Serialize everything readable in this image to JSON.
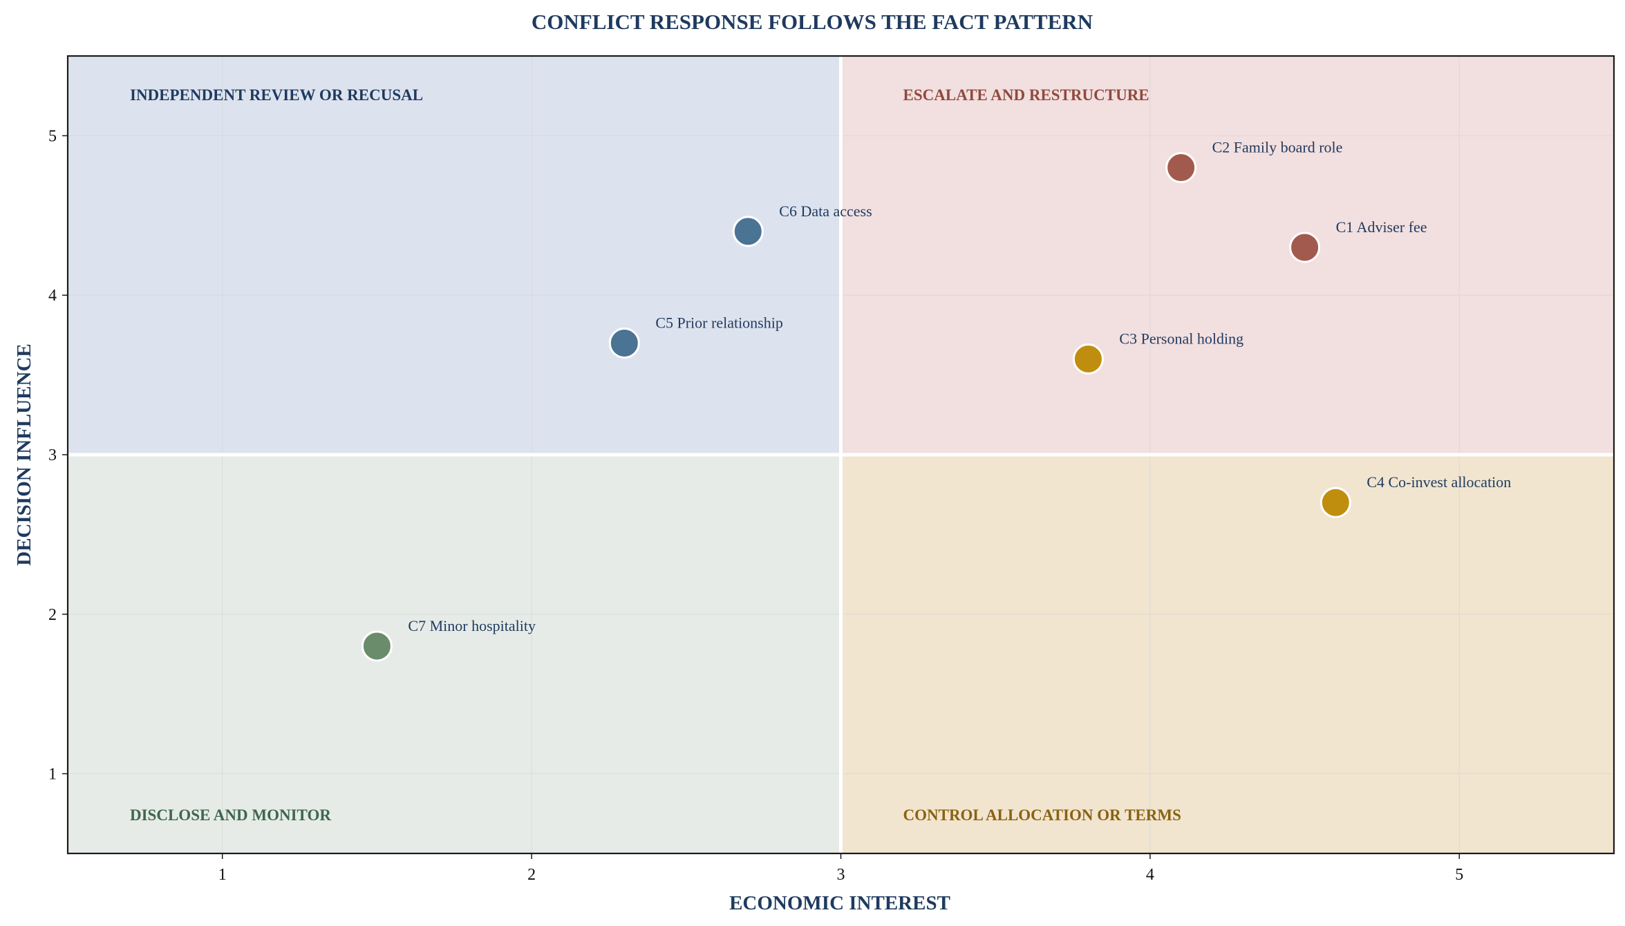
{
  "chart_data": {
    "type": "scatter",
    "title": "CONFLICT RESPONSE FOLLOWS THE FACT PATTERN",
    "xlabel": "ECONOMIC INTEREST",
    "ylabel": "DECISION INFLUENCE",
    "xlim": [
      0.5,
      5.5
    ],
    "ylim": [
      0.5,
      5.5
    ],
    "xticks": [
      1,
      2,
      3,
      4,
      5
    ],
    "yticks": [
      1,
      2,
      3,
      4,
      5
    ],
    "grid": true,
    "threshold": {
      "x": 3,
      "y": 3
    },
    "quadrants": [
      {
        "name": "INDEPENDENT REVIEW OR RECUSAL",
        "x_range": [
          0.5,
          3
        ],
        "y_range": [
          3,
          5.5
        ],
        "fill": "#dde3ee",
        "label_color": "#1f3a5f"
      },
      {
        "name": "ESCALATE AND RESTRUCTURE",
        "x_range": [
          3,
          5.5
        ],
        "y_range": [
          3,
          5.5
        ],
        "fill": "#f2dfdf",
        "label_color": "#8f4a3d"
      },
      {
        "name": "DISCLOSE AND MONITOR",
        "x_range": [
          0.5,
          3
        ],
        "y_range": [
          0.5,
          3
        ],
        "fill": "#e6ebe7",
        "label_color": "#3f6650"
      },
      {
        "name": "CONTROL ALLOCATION OR TERMS",
        "x_range": [
          3,
          5.5
        ],
        "y_range": [
          0.5,
          3
        ],
        "fill": "#f1e5cf",
        "label_color": "#8a6212"
      }
    ],
    "points": [
      {
        "label": "C1 Adviser fee",
        "x": 4.5,
        "y": 4.3,
        "color": "#a35a4e"
      },
      {
        "label": "C2 Family board role",
        "x": 4.1,
        "y": 4.8,
        "color": "#a35a4e"
      },
      {
        "label": "C3 Personal holding",
        "x": 3.8,
        "y": 3.6,
        "color": "#c08e0e"
      },
      {
        "label": "C4 Co-invest allocation",
        "x": 4.6,
        "y": 2.7,
        "color": "#c08e0e"
      },
      {
        "label": "C5 Prior relationship",
        "x": 2.3,
        "y": 3.7,
        "color": "#4a7394"
      },
      {
        "label": "C6 Data access",
        "x": 2.7,
        "y": 4.4,
        "color": "#4a7394"
      },
      {
        "label": "C7 Minor hospitality",
        "x": 1.5,
        "y": 1.8,
        "color": "#6b8c6a"
      }
    ]
  }
}
